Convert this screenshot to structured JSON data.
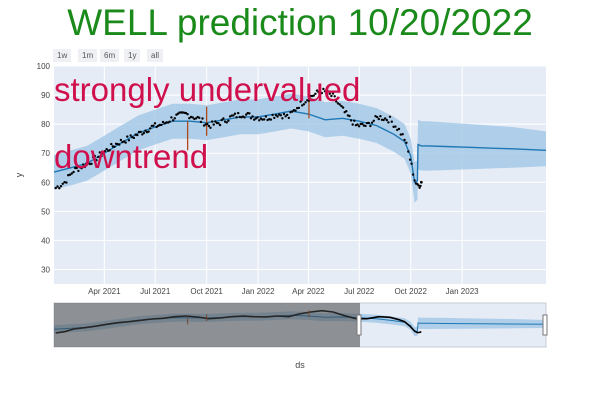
{
  "title": "WELL prediction 10/20/2022",
  "range_selector": [
    "1w",
    "1m",
    "6m",
    "1y",
    "all"
  ],
  "annotations": {
    "valuation": "strongly undervalued",
    "trend": "downtrend"
  },
  "colors": {
    "title": "#1a8a1a",
    "annotation": "#d0104c",
    "forecast_line": "#1f77b4",
    "uncertainty_band": "#9cc4e4",
    "actual_points": "#000000",
    "changepoints": "#b04a1a",
    "plot_background": "#e5ecf6"
  },
  "chart_data": {
    "type": "line",
    "xlabel": "ds",
    "ylabel": "y",
    "ylim": [
      25,
      100
    ],
    "x_range": [
      "2021-01-01",
      "2023-05-31"
    ],
    "x_ticks": [
      "Apr 2021",
      "Jul 2021",
      "Oct 2021",
      "Jan 2022",
      "Apr 2022",
      "Jul 2022",
      "Oct 2022",
      "Jan 2023"
    ],
    "y_ticks": [
      30,
      40,
      50,
      60,
      70,
      80,
      90,
      100
    ],
    "grid": true,
    "series": [
      {
        "kind": "forecast",
        "dates": [
          "2021-01-01",
          "2021-02-01",
          "2021-03-01",
          "2021-04-01",
          "2021-05-01",
          "2021-06-01",
          "2021-07-01",
          "2021-08-01",
          "2021-09-01",
          "2021-10-01",
          "2021-11-01",
          "2021-12-01",
          "2022-01-01",
          "2022-02-01",
          "2022-03-01",
          "2022-04-01",
          "2022-05-01",
          "2022-06-01",
          "2022-07-01",
          "2022-08-01",
          "2022-09-01",
          "2022-09-20",
          "2022-10-01",
          "2022-10-08",
          "2022-10-13",
          "2022-10-14",
          "2022-10-20",
          "2022-11-01",
          "2022-12-01",
          "2023-01-01",
          "2023-02-01",
          "2023-03-01",
          "2023-04-01",
          "2023-05-31"
        ],
        "yhat": [
          63.5,
          65,
          66.5,
          70,
          73.5,
          77,
          79,
          81,
          81,
          80.5,
          81.5,
          82.5,
          82.5,
          83.5,
          84.5,
          83.5,
          81.5,
          82,
          81,
          79.5,
          76.5,
          74,
          69,
          60,
          60.5,
          73,
          72.5,
          72.5,
          72.3,
          72.1,
          71.9,
          71.7,
          71.5,
          71
        ],
        "lower": [
          57.5,
          59,
          60.5,
          64,
          67.5,
          71,
          73,
          75,
          75,
          74.5,
          75.5,
          76.5,
          76.5,
          77.5,
          78.5,
          77.5,
          75.5,
          76,
          75,
          73.5,
          70.5,
          68,
          63,
          53,
          54,
          64.5,
          64,
          64,
          64.2,
          64.4,
          64.6,
          64.8,
          65,
          65.5
        ],
        "upper": [
          69.5,
          71,
          72.5,
          76,
          79.5,
          83,
          85,
          87,
          87,
          86.5,
          87.5,
          88.5,
          88.5,
          89.5,
          90.5,
          89.5,
          87.5,
          88,
          87,
          85.5,
          82.5,
          80,
          75,
          67,
          67.5,
          81.5,
          81,
          81,
          80.6,
          80.2,
          79.8,
          79.4,
          79,
          77.5
        ]
      },
      {
        "kind": "actual",
        "dates": [
          "2021-01-04",
          "2021-01-20",
          "2021-02-05",
          "2021-02-25",
          "2021-03-15",
          "2021-04-05",
          "2021-04-25",
          "2021-05-15",
          "2021-06-05",
          "2021-06-25",
          "2021-07-15",
          "2021-08-05",
          "2021-08-25",
          "2021-09-15",
          "2021-10-05",
          "2021-10-25",
          "2021-11-15",
          "2021-12-05",
          "2021-12-25",
          "2022-01-15",
          "2022-02-05",
          "2022-02-25",
          "2022-03-15",
          "2022-04-05",
          "2022-04-25",
          "2022-05-15",
          "2022-06-05",
          "2022-06-25",
          "2022-07-15",
          "2022-08-05",
          "2022-08-25",
          "2022-09-10",
          "2022-09-20",
          "2022-09-30",
          "2022-10-08",
          "2022-10-13",
          "2022-10-17",
          "2022-10-20"
        ],
        "values": [
          58,
          60,
          64,
          66,
          68,
          71,
          73.5,
          75,
          77,
          79,
          80,
          82.5,
          83.5,
          82,
          79.5,
          80.5,
          82.5,
          83.5,
          82.5,
          82,
          83.5,
          82.5,
          86.5,
          89.5,
          91.5,
          89.5,
          84,
          79.5,
          79.5,
          82.5,
          81.5,
          78,
          75,
          68,
          61,
          58.5,
          59,
          60
        ]
      }
    ],
    "changepoints": [
      {
        "date": "2021-08-28",
        "low": 71,
        "high": 81
      },
      {
        "date": "2021-10-01",
        "low": 76,
        "high": 86
      },
      {
        "date": "2022-04-02",
        "low": 82,
        "high": 92
      }
    ]
  }
}
